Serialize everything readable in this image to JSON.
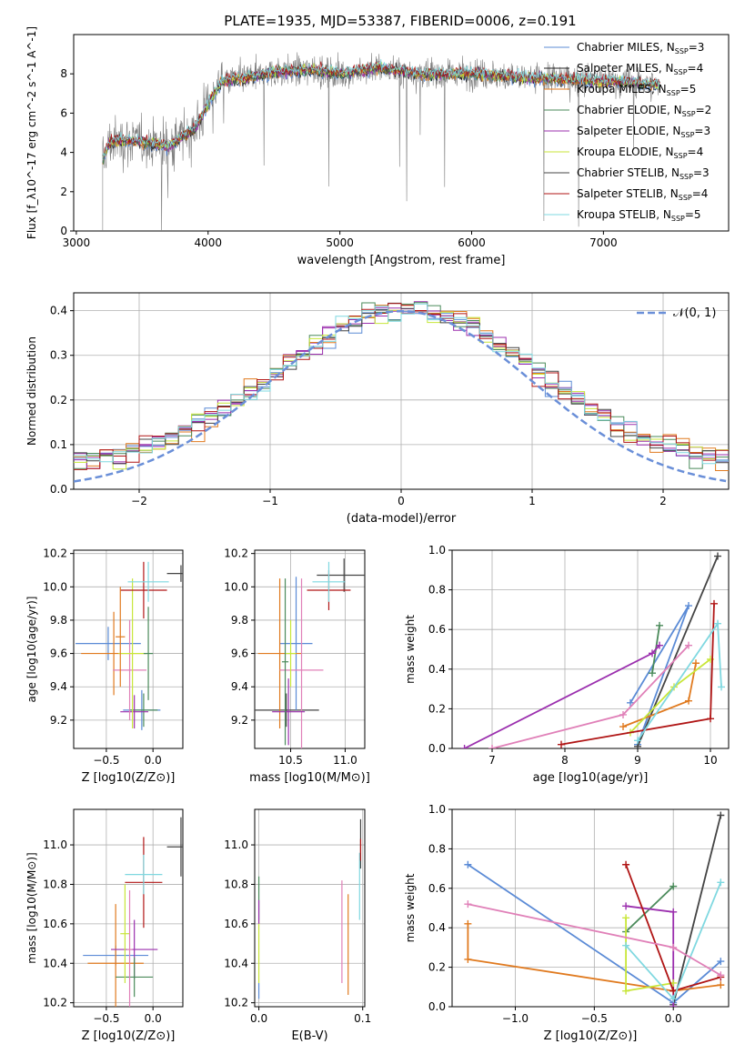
{
  "figure": {
    "title": "PLATE=1935, MJD=53387, FIBERID=0006, z=0.191"
  },
  "colors": {
    "c1": "#5b8bd6",
    "c2": "#222222",
    "c3": "#e07a1f",
    "c4": "#4a8a5a",
    "c5": "#9b2fae",
    "c6": "#c8e639",
    "c7": "#444444",
    "c8": "#b01515",
    "c9": "#7fd8e0",
    "pink": "#e080b8",
    "gray": "#7f7f7f",
    "grid": "#b0b0b0",
    "gauss": "#6a8fd8"
  },
  "chart_data": [
    {
      "id": "spectrum",
      "type": "line",
      "xlabel": "wavelength [Angstrom, rest frame]",
      "ylabel": "Flux [f_λ10^-17 erg cm^-2 s^-1 A^-1]",
      "xlim": [
        2980,
        7950
      ],
      "ylim": [
        0,
        10
      ],
      "xticks": [
        "3000",
        "4000",
        "5000",
        "6000",
        "7000"
      ],
      "yticks": [
        "0",
        "2",
        "4",
        "6",
        "8"
      ],
      "grid": false,
      "legend_position": "upper right",
      "legend": [
        {
          "label": "Chabrier MILES, N",
          "sub": "SSP",
          "suffix": "=3",
          "color": "#5b8bd6"
        },
        {
          "label": "Salpeter MILES, N",
          "sub": "SSP",
          "suffix": "=4",
          "color": "#222222"
        },
        {
          "label": "Kroupa MILES, N",
          "sub": "SSP",
          "suffix": "=5",
          "color": "#e07a1f"
        },
        {
          "label": "Chabrier ELODIE, N",
          "sub": "SSP",
          "suffix": "=2",
          "color": "#4a8a5a"
        },
        {
          "label": "Salpeter ELODIE, N",
          "sub": "SSP",
          "suffix": "=3",
          "color": "#9b2fae"
        },
        {
          "label": "Kroupa ELODIE, N",
          "sub": "SSP",
          "suffix": "=4",
          "color": "#c8e639"
        },
        {
          "label": "Chabrier STELIB, N",
          "sub": "SSP",
          "suffix": "=3",
          "color": "#444444"
        },
        {
          "label": "Salpeter STELIB, N",
          "sub": "SSP",
          "suffix": "=4",
          "color": "#b01515"
        },
        {
          "label": "Kroupa STELIB, N",
          "sub": "SSP",
          "suffix": "=5",
          "color": "#7fd8e0"
        }
      ],
      "continuum_points": [
        [
          3200,
          3.6
        ],
        [
          3250,
          4.5
        ],
        [
          3400,
          4.6
        ],
        [
          3550,
          4.5
        ],
        [
          3700,
          4.3
        ],
        [
          3800,
          4.8
        ],
        [
          3900,
          5.2
        ],
        [
          4000,
          6.5
        ],
        [
          4100,
          7.6
        ],
        [
          4300,
          7.8
        ],
        [
          4500,
          8.1
        ],
        [
          4800,
          8.2
        ],
        [
          5000,
          8.0
        ],
        [
          5300,
          8.3
        ],
        [
          5600,
          8.0
        ],
        [
          6000,
          8.0
        ],
        [
          6400,
          7.8
        ],
        [
          6800,
          7.7
        ],
        [
          7200,
          7.6
        ],
        [
          7430,
          7.4
        ]
      ]
    },
    {
      "id": "residuals",
      "type": "histogram",
      "xlabel": "(data-model)/error",
      "ylabel": "Normed distribution",
      "xlim": [
        -2.5,
        2.5
      ],
      "ylim": [
        0,
        0.44
      ],
      "xticks": [
        "−2",
        "−1",
        "0",
        "1",
        "2"
      ],
      "yticks": [
        "0.0",
        "0.1",
        "0.2",
        "0.3",
        "0.4"
      ],
      "grid": true,
      "legend": [
        {
          "label": "𝒩(0, 1)",
          "style": "dashed"
        }
      ],
      "bin_width": 0.1,
      "reference_curve": "N(0,1)"
    },
    {
      "id": "age_vs_Z",
      "type": "scatter",
      "xlabel": "Z [log10(Z/Z⊙)]",
      "ylabel": "age  [log10(age/yr)]",
      "xlim": [
        -0.85,
        0.32
      ],
      "ylim": [
        9.03,
        10.22
      ],
      "xticks": [
        "−0.5",
        "0.0"
      ],
      "yticks": [
        "9.2",
        "9.4",
        "9.6",
        "9.8",
        "10.0",
        "10.2"
      ],
      "grid": true,
      "points": [
        {
          "x": -0.12,
          "y": 9.26,
          "xerr": 0.2,
          "yerr": 0.12,
          "c": "c1"
        },
        {
          "x": 0.3,
          "y": 10.08,
          "xerr": 0.15,
          "yerr": 0.05,
          "c": "c7"
        },
        {
          "x": -0.1,
          "y": 9.26,
          "xerr": 0.15,
          "yerr": 0.1,
          "c": "c4"
        },
        {
          "x": -0.2,
          "y": 9.25,
          "xerr": 0.15,
          "yerr": 0.1,
          "c": "c5"
        },
        {
          "x": -0.48,
          "y": 9.66,
          "xerr": 0.35,
          "yerr": 0.1,
          "c": "c1"
        },
        {
          "x": -0.42,
          "y": 9.6,
          "xerr": 0.35,
          "yerr": 0.25,
          "c": "c3"
        },
        {
          "x": -0.25,
          "y": 9.5,
          "xerr": 0.18,
          "yerr": 0.3,
          "c": "pink"
        },
        {
          "x": -0.22,
          "y": 9.6,
          "xerr": 0.15,
          "yerr": 0.45,
          "c": "c6"
        },
        {
          "x": -0.1,
          "y": 9.98,
          "xerr": 0.25,
          "yerr": 0.17,
          "c": "c8"
        },
        {
          "x": -0.05,
          "y": 10.03,
          "xerr": 0.22,
          "yerr": 0.12,
          "c": "c9"
        },
        {
          "x": -0.35,
          "y": 9.7,
          "xerr": 0.05,
          "yerr": 0.3,
          "c": "c3"
        },
        {
          "x": -0.05,
          "y": 9.6,
          "xerr": 0.05,
          "yerr": 0.28,
          "c": "c4"
        }
      ]
    },
    {
      "id": "age_vs_mass",
      "type": "scatter",
      "xlabel": "mass [log10(M/M⊙)]",
      "ylabel": "",
      "xlim": [
        10.17,
        11.18
      ],
      "ylim": [
        9.03,
        10.22
      ],
      "xticks": [
        "10.5",
        "11.0"
      ],
      "yticks": [
        "9.2",
        "9.4",
        "9.6",
        "9.8",
        "10.0",
        "10.2"
      ],
      "grid": true,
      "points": [
        {
          "x": 10.46,
          "y": 9.26,
          "xerr": 0.3,
          "yerr": 0.1,
          "c": "c7"
        },
        {
          "x": 10.99,
          "y": 10.07,
          "xerr": 0.25,
          "yerr": 0.1,
          "c": "c7"
        },
        {
          "x": 10.85,
          "y": 9.98,
          "xerr": 0.2,
          "yerr": 0.12,
          "c": "c8"
        },
        {
          "x": 10.85,
          "y": 10.03,
          "xerr": 0.15,
          "yerr": 0.12,
          "c": "c9"
        },
        {
          "x": 10.55,
          "y": 9.66,
          "xerr": 0.15,
          "yerr": 0.4,
          "c": "c1"
        },
        {
          "x": 10.4,
          "y": 9.6,
          "xerr": 0.2,
          "yerr": 0.45,
          "c": "c3"
        },
        {
          "x": 10.6,
          "y": 9.5,
          "xerr": 0.2,
          "yerr": 0.55,
          "c": "pink"
        },
        {
          "x": 10.5,
          "y": 9.6,
          "xerr": 0.05,
          "yerr": 0.2,
          "c": "c6"
        },
        {
          "x": 10.48,
          "y": 9.25,
          "xerr": 0.15,
          "yerr": 0.2,
          "c": "c5"
        },
        {
          "x": 10.45,
          "y": 9.55,
          "xerr": 0.03,
          "yerr": 0.5,
          "c": "c4"
        }
      ]
    },
    {
      "id": "weight_vs_age",
      "type": "line",
      "xlabel": "age  [log10(age/yr)]",
      "ylabel": "mass weight",
      "xlim": [
        6.45,
        10.25
      ],
      "ylim": [
        0,
        1
      ],
      "xticks": [
        "7",
        "8",
        "9",
        "10"
      ],
      "yticks": [
        "0.0",
        "0.2",
        "0.4",
        "0.6",
        "0.8",
        "1.0"
      ],
      "grid": true,
      "series": [
        {
          "c": "c1",
          "x": [
            9.0,
            9.7,
            8.9
          ],
          "y": [
            0.02,
            0.72,
            0.23
          ]
        },
        {
          "c": "c7",
          "x": [
            9.0,
            10.1
          ],
          "y": [
            0.01,
            0.97
          ]
        },
        {
          "c": "c3",
          "x": [
            8.8,
            9.7,
            9.8
          ],
          "y": [
            0.11,
            0.24,
            0.43
          ]
        },
        {
          "c": "c4",
          "x": [
            9.2,
            9.3
          ],
          "y": [
            0.38,
            0.62
          ]
        },
        {
          "c": "c5",
          "x": [
            6.62,
            9.2,
            9.3
          ],
          "y": [
            0.0,
            0.48,
            0.52
          ]
        },
        {
          "c": "c6",
          "x": [
            8.9,
            9.5,
            10.0
          ],
          "y": [
            0.08,
            0.31,
            0.45
          ]
        },
        {
          "c": "c8",
          "x": [
            7.95,
            10.0,
            10.05
          ],
          "y": [
            0.02,
            0.15,
            0.73
          ]
        },
        {
          "c": "c9",
          "x": [
            9.0,
            10.1,
            10.15
          ],
          "y": [
            0.04,
            0.63,
            0.31
          ]
        },
        {
          "c": "pink",
          "x": [
            7.0,
            8.8,
            9.7
          ],
          "y": [
            0.0,
            0.17,
            0.52
          ]
        }
      ]
    },
    {
      "id": "mass_vs_Z",
      "type": "scatter",
      "xlabel": "Z [log10(Z/Z⊙)]",
      "ylabel": "mass [log10(M/M⊙)]",
      "xlim": [
        -0.85,
        0.32
      ],
      "ylim": [
        10.18,
        11.18
      ],
      "xticks": [
        "−0.5",
        "0.0"
      ],
      "yticks": [
        "10.2",
        "10.4",
        "10.6",
        "10.8",
        "11.0"
      ],
      "grid": true,
      "points": [
        {
          "x": -0.4,
          "y": 10.44,
          "xerr": 0.35,
          "yerr": 0.05,
          "c": "c1"
        },
        {
          "x": -0.4,
          "y": 10.4,
          "xerr": 0.3,
          "yerr": 0.3,
          "c": "c3"
        },
        {
          "x": -0.2,
          "y": 10.47,
          "xerr": 0.25,
          "yerr": 0.15,
          "c": "c5"
        },
        {
          "x": -0.2,
          "y": 10.33,
          "xerr": 0.2,
          "yerr": 0.1,
          "c": "c4"
        },
        {
          "x": -0.3,
          "y": 10.55,
          "xerr": 0.05,
          "yerr": 0.25,
          "c": "c6"
        },
        {
          "x": -0.1,
          "y": 10.81,
          "xerr": 0.2,
          "yerr": 0.23,
          "c": "c8"
        },
        {
          "x": -0.1,
          "y": 10.85,
          "xerr": 0.2,
          "yerr": 0.1,
          "c": "c9"
        },
        {
          "x": 0.3,
          "y": 10.99,
          "xerr": 0.15,
          "yerr": 0.15,
          "c": "c7"
        },
        {
          "x": -0.25,
          "y": 10.47,
          "xerr": 0.03,
          "yerr": 0.3,
          "c": "pink"
        }
      ]
    },
    {
      "id": "mass_vs_ebv",
      "type": "scatter",
      "xlabel": "E(B-V)",
      "ylabel": "",
      "xlim": [
        -0.004,
        0.102
      ],
      "ylim": [
        10.18,
        11.18
      ],
      "xticks": [
        "0.0",
        "0.1"
      ],
      "yticks": [
        "10.2",
        "10.4",
        "10.6",
        "10.8",
        "11.0"
      ],
      "grid": true,
      "bars": [
        {
          "x": 0.0,
          "y0": 10.62,
          "y1": 10.84,
          "c": "c4"
        },
        {
          "x": 0.0,
          "y0": 10.3,
          "y1": 10.62,
          "c": "c6"
        },
        {
          "x": 0.0,
          "y0": 10.22,
          "y1": 10.3,
          "c": "c1"
        },
        {
          "x": 0.0,
          "y0": 10.6,
          "y1": 10.72,
          "c": "c5"
        },
        {
          "x": 0.08,
          "y0": 10.3,
          "y1": 10.82,
          "c": "pink"
        },
        {
          "x": 0.086,
          "y0": 10.24,
          "y1": 10.75,
          "c": "c3"
        },
        {
          "x": 0.097,
          "y0": 10.62,
          "y1": 10.96,
          "c": "c9"
        },
        {
          "x": 0.098,
          "y0": 10.88,
          "y1": 11.13,
          "c": "c7"
        },
        {
          "x": 0.098,
          "y0": 10.92,
          "y1": 11.03,
          "c": "c8"
        }
      ]
    },
    {
      "id": "weight_vs_Z",
      "type": "line",
      "xlabel": "Z [log10(Z/Z⊙)]",
      "ylabel": "mass weight",
      "xlim": [
        -1.4,
        0.35
      ],
      "ylim": [
        0,
        1
      ],
      "xticks": [
        "−1.0",
        "−0.5",
        "0.0"
      ],
      "yticks": [
        "0.0",
        "0.2",
        "0.4",
        "0.6",
        "0.8",
        "1.0"
      ],
      "grid": true,
      "series": [
        {
          "c": "c1",
          "x": [
            -1.3,
            0.0,
            0.3
          ],
          "y": [
            0.72,
            0.02,
            0.23
          ]
        },
        {
          "c": "c7",
          "x": [
            -0.0,
            0.3
          ],
          "y": [
            0.01,
            0.97
          ]
        },
        {
          "c": "c3",
          "x": [
            -1.3,
            -1.3,
            0.0,
            0.3
          ],
          "y": [
            0.42,
            0.24,
            0.08,
            0.11
          ]
        },
        {
          "c": "c4",
          "x": [
            -0.3,
            0.0
          ],
          "y": [
            0.38,
            0.61
          ]
        },
        {
          "c": "c5",
          "x": [
            -0.3,
            0.0,
            0.0
          ],
          "y": [
            0.51,
            0.48,
            0.0
          ]
        },
        {
          "c": "c6",
          "x": [
            -0.3,
            -0.3,
            0.0
          ],
          "y": [
            0.45,
            0.08,
            0.12
          ]
        },
        {
          "c": "c8",
          "x": [
            -0.3,
            -0.0,
            0.3
          ],
          "y": [
            0.72,
            0.08,
            0.15
          ]
        },
        {
          "c": "c9",
          "x": [
            -0.3,
            0.0,
            0.3
          ],
          "y": [
            0.31,
            0.04,
            0.63
          ]
        },
        {
          "c": "pink",
          "x": [
            -1.3,
            -0.0,
            0.3
          ],
          "y": [
            0.52,
            0.3,
            0.16
          ]
        }
      ]
    }
  ]
}
